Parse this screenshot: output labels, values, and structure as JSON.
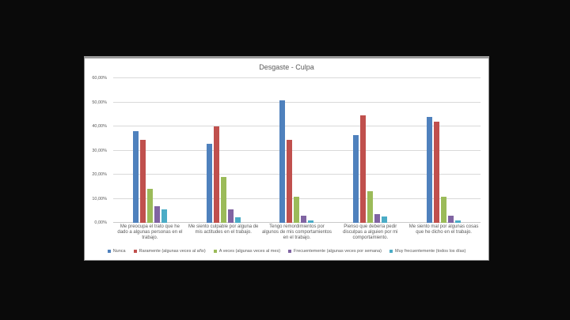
{
  "slide": {
    "background_color": "#0a0a0a",
    "panel_background": "#ffffff"
  },
  "chart_data": {
    "type": "bar",
    "title": "Desgaste - Culpa",
    "title_color": "#595959",
    "grid": true,
    "gridline_color": "#d9d9d9",
    "legend_position": "bottom",
    "ylim": [
      0,
      60
    ],
    "ytick_step": 10,
    "ytick_labels": [
      "0,00%",
      "10,00%",
      "20,00%",
      "30,00%",
      "40,00%",
      "50,00%",
      "60,00%"
    ],
    "categories": [
      "Me preocupa el trato que he dado a algunas personas en el trabajo.",
      "Me siento culpable por alguna de mis actitudes en el trabajo.",
      "Tengo remordimientos por algunos de mis comportamientos en el trabajo.",
      "Pienso que debería pedir disculpas a alguien por mi comportamiento.",
      "Me siento mal por algunas cosas que he dicho en el trabajo."
    ],
    "series": [
      {
        "name": "Nunca",
        "color": "#4F81BD",
        "values": [
          38.0,
          32.7,
          50.8,
          36.5,
          43.8
        ]
      },
      {
        "name": "Raramente (algunas veces al año)",
        "color": "#C0504D",
        "values": [
          34.5,
          40.1,
          34.3,
          44.7,
          41.9
        ]
      },
      {
        "name": "A veces (algunas veces al mes)",
        "color": "#9BBB59",
        "values": [
          14.2,
          19.0,
          10.8,
          13.0,
          10.8
        ]
      },
      {
        "name": "Frecuentemente (algunas veces por semana)",
        "color": "#8064A2",
        "values": [
          7.0,
          5.7,
          2.9,
          3.5,
          2.8
        ]
      },
      {
        "name": "Muy frecuentemente (todos los días)",
        "color": "#4BACC6",
        "values": [
          5.7,
          2.3,
          1.0,
          2.5,
          0.9
        ]
      }
    ]
  }
}
